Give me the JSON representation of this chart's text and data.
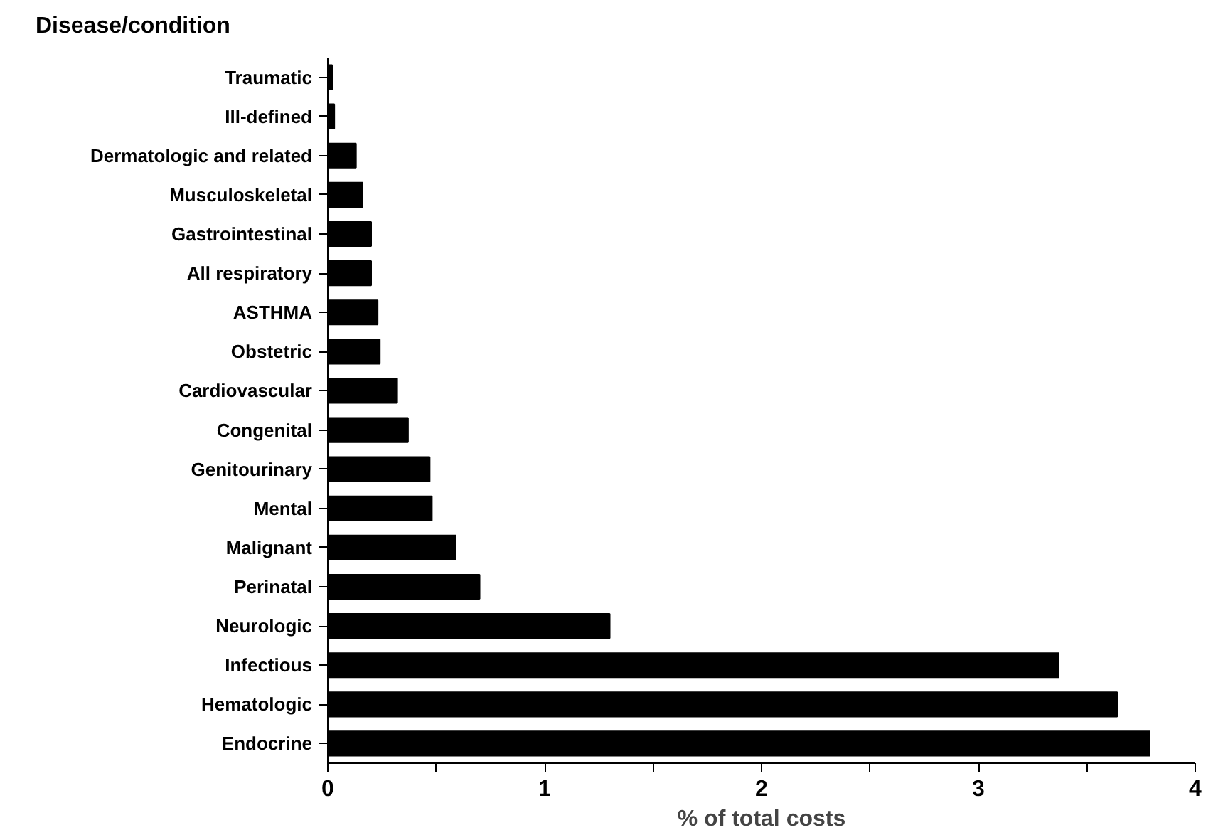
{
  "chart_data": {
    "type": "bar",
    "orientation": "horizontal",
    "ylabel": "Disease/condition",
    "xlabel": "% of total costs",
    "categories": [
      "Traumatic",
      "Ill-defined",
      "Dermatologic and related",
      "Musculoskeletal",
      "Gastrointestinal",
      "All respiratory",
      "ASTHMA",
      "Obstetric",
      "Cardiovascular",
      "Congenital",
      "Genitourinary",
      "Mental",
      "Malignant",
      "Perinatal",
      "Neurologic",
      "Infectious",
      "Hematologic",
      "Endocrine"
    ],
    "values": [
      0.02,
      0.03,
      0.13,
      0.16,
      0.2,
      0.2,
      0.23,
      0.24,
      0.32,
      0.37,
      0.47,
      0.48,
      0.59,
      0.7,
      1.3,
      3.37,
      3.64,
      3.79
    ],
    "color": "#000000",
    "xlim": [
      0,
      4
    ],
    "xticks": [
      0,
      {
        "value": 0.5,
        "label": null
      },
      1,
      {
        "value": 1.5,
        "label": null
      },
      2,
      {
        "value": 2.5,
        "label": null
      },
      3,
      {
        "value": 3.5,
        "label": null
      },
      4
    ],
    "grid": false
  }
}
